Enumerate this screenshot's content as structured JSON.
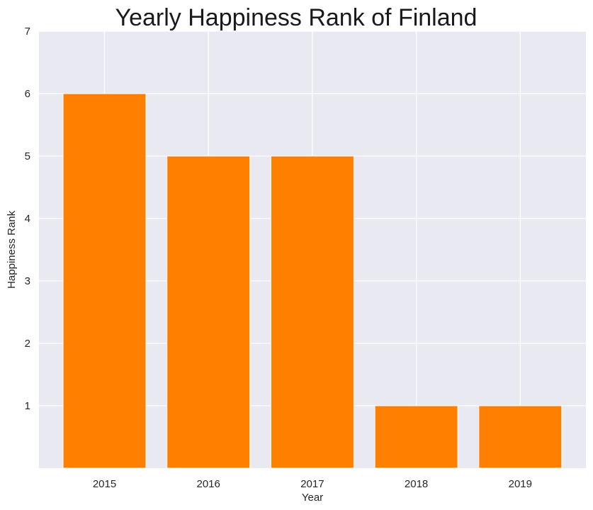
{
  "chart_data": {
    "type": "bar",
    "title": "Yearly Happiness Rank of Finland",
    "xlabel": "Year",
    "ylabel": "Happiness Rank",
    "categories": [
      "2015",
      "2016",
      "2017",
      "2018",
      "2019"
    ],
    "values": [
      6,
      5,
      5,
      1,
      1
    ],
    "ylim": [
      0,
      7
    ],
    "yticks": [
      1,
      2,
      3,
      4,
      5,
      6,
      7
    ],
    "grid": true,
    "legend": "none",
    "bar_color": "#ff7f00",
    "background_color": "#e9e9f2",
    "grid_color": "#ffffff"
  }
}
